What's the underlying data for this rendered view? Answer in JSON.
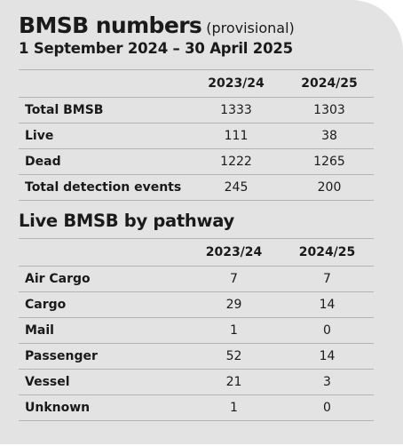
{
  "header": {
    "title": "BMSB numbers",
    "title_note": "(provisional)",
    "date_range": "1 September 2024 – 30 April 2025"
  },
  "totals_table": {
    "columns": [
      "",
      "2023/24",
      "2024/25"
    ],
    "rows": [
      {
        "label": "Total BMSB",
        "y2023": "1333",
        "y2024": "1303"
      },
      {
        "label": "Live",
        "y2023": "111",
        "y2024": "38"
      },
      {
        "label": "Dead",
        "y2023": "1222",
        "y2024": "1265"
      },
      {
        "label": "Total detection events",
        "y2023": "245",
        "y2024": "200"
      }
    ]
  },
  "pathway_section": {
    "heading": "Live BMSB by pathway",
    "columns": [
      "",
      "2023/24",
      "2024/25"
    ],
    "rows": [
      {
        "label": "Air Cargo",
        "y2023": "7",
        "y2024": "7"
      },
      {
        "label": "Cargo",
        "y2023": "29",
        "y2024": "14"
      },
      {
        "label": "Mail",
        "y2023": "1",
        "y2024": "0"
      },
      {
        "label": "Passenger",
        "y2023": "52",
        "y2024": "14"
      },
      {
        "label": "Vessel",
        "y2023": "21",
        "y2024": "3"
      },
      {
        "label": "Unknown",
        "y2023": "1",
        "y2024": "0"
      }
    ]
  },
  "colors": {
    "panel_background": "#e3e3e3",
    "text": "#1a1a1a",
    "rule": "#b3b3b3"
  }
}
